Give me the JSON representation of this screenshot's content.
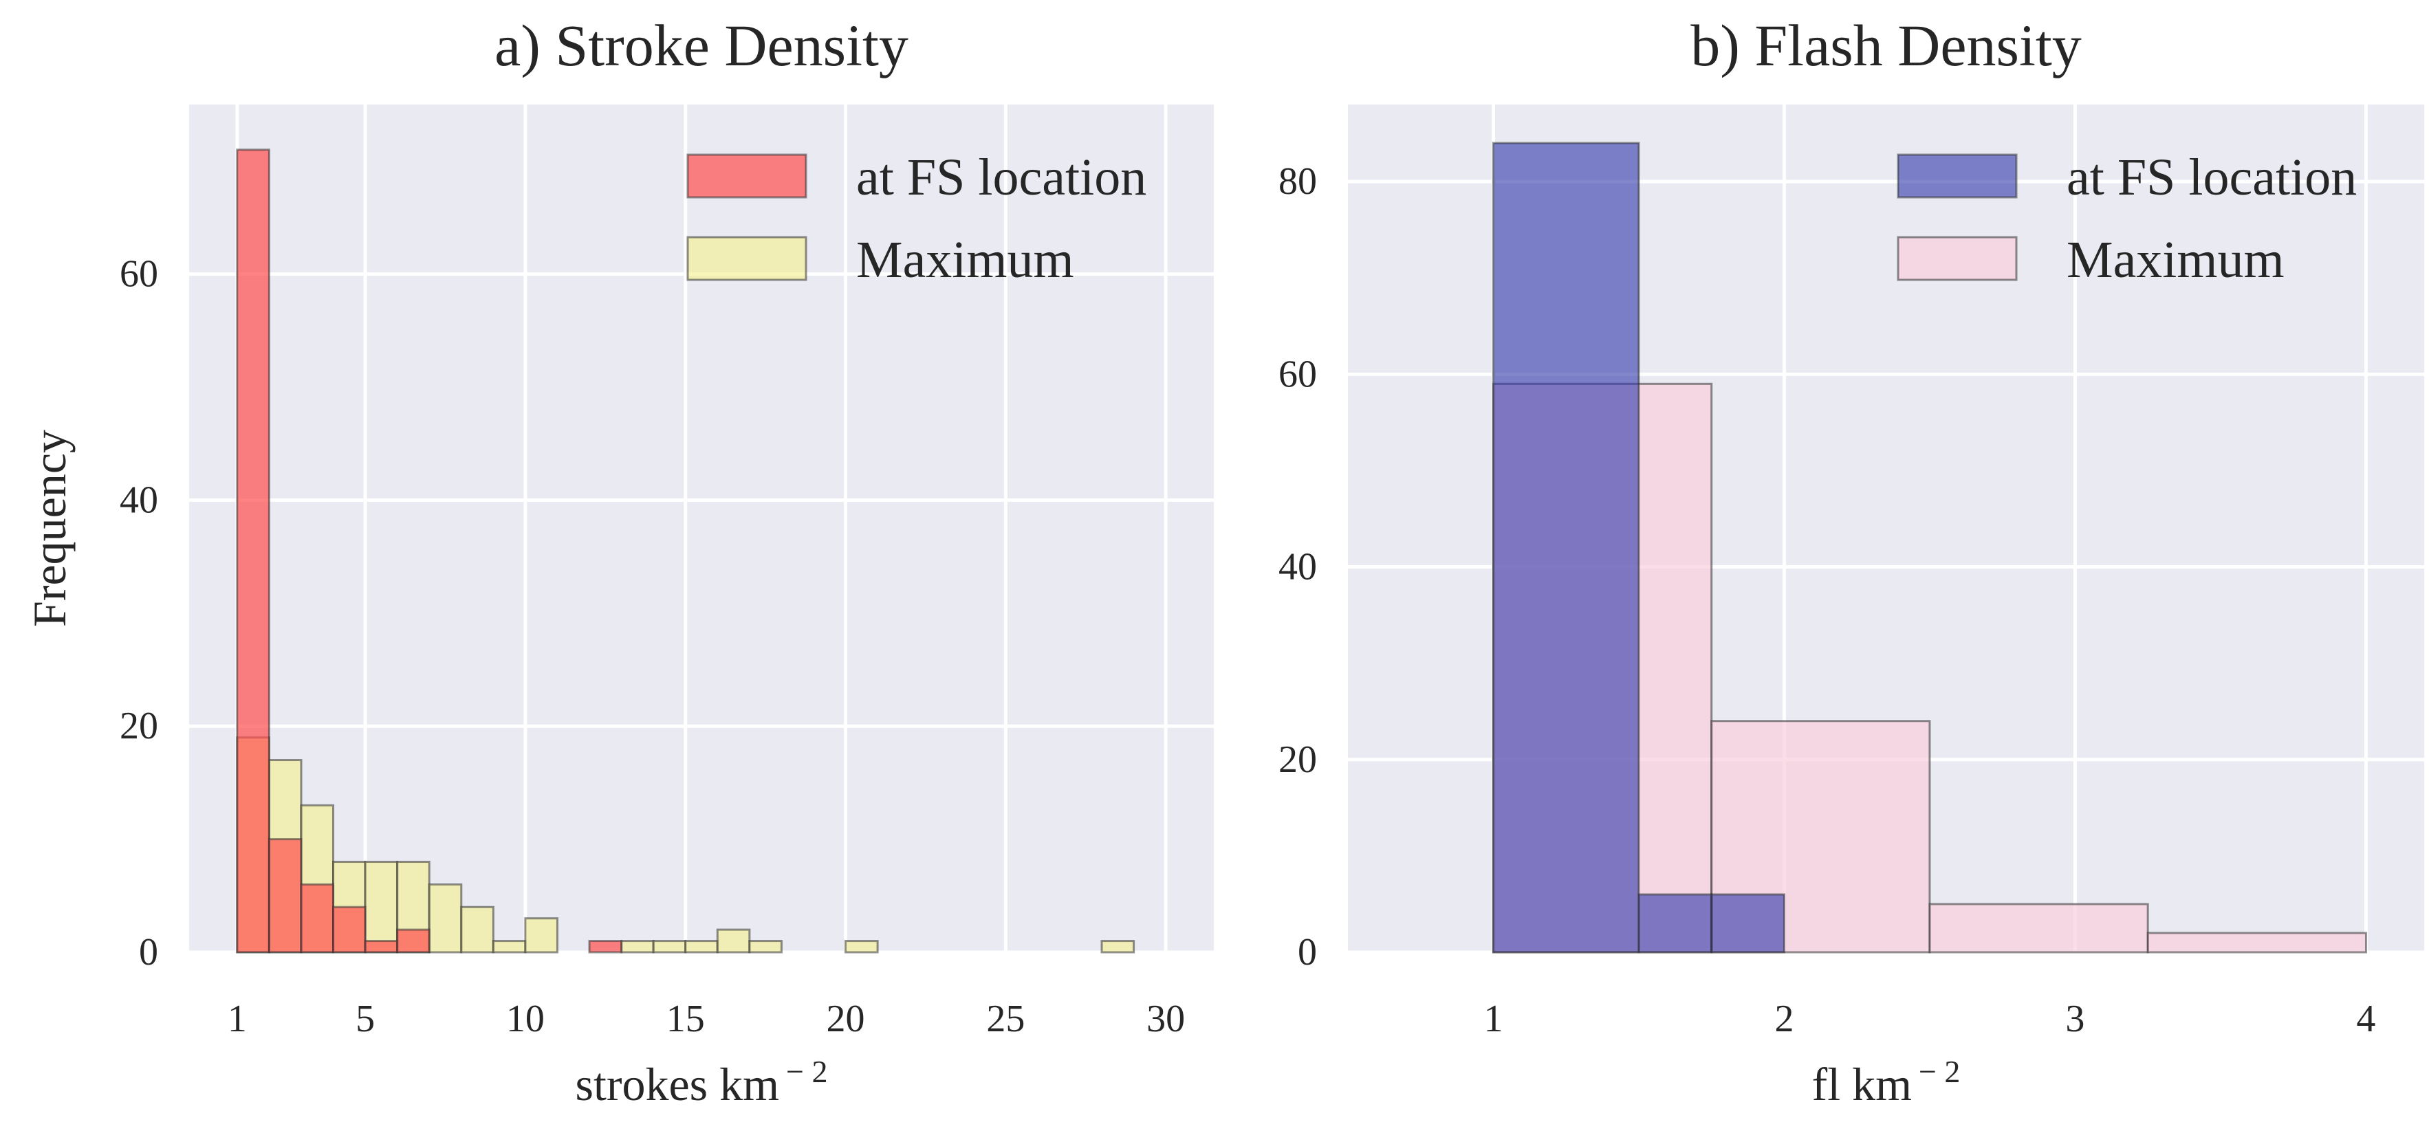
{
  "chart_data": [
    {
      "type": "histogram",
      "title": "a) Stroke Density",
      "xlabel": "strokes km",
      "xlabel_sup": "− 2",
      "ylabel": "Frequency",
      "xlim": [
        -0.5,
        31.5
      ],
      "ylim": [
        0,
        75
      ],
      "xticks": [
        1,
        5,
        10,
        15,
        20,
        25,
        30
      ],
      "yticks": [
        0,
        20,
        40,
        60
      ],
      "grid": true,
      "legend_position": "top-right",
      "series": [
        {
          "name": "Maximum",
          "color": "#f5f08a",
          "opacity": 0.6,
          "bin_width": 1,
          "bins": [
            [
              1,
              19
            ],
            [
              2,
              17
            ],
            [
              3,
              13
            ],
            [
              4,
              8
            ],
            [
              5,
              8
            ],
            [
              6,
              8
            ],
            [
              7,
              6
            ],
            [
              8,
              4
            ],
            [
              9,
              1
            ],
            [
              10,
              3
            ],
            [
              11,
              0
            ],
            [
              12,
              0
            ],
            [
              13,
              1
            ],
            [
              14,
              1
            ],
            [
              15,
              1
            ],
            [
              16,
              2
            ],
            [
              17,
              1
            ],
            [
              18,
              0
            ],
            [
              19,
              0
            ],
            [
              20,
              1
            ],
            [
              21,
              0
            ],
            [
              22,
              0
            ],
            [
              23,
              0
            ],
            [
              24,
              0
            ],
            [
              25,
              0
            ],
            [
              26,
              0
            ],
            [
              27,
              0
            ],
            [
              28,
              1
            ]
          ]
        },
        {
          "name": "at FS location",
          "color": "#ff4d4d",
          "opacity": 0.7,
          "bin_width": 1,
          "bins": [
            [
              1,
              71
            ],
            [
              2,
              10
            ],
            [
              3,
              6
            ],
            [
              4,
              4
            ],
            [
              5,
              1
            ],
            [
              6,
              2
            ],
            [
              12,
              1
            ]
          ]
        }
      ]
    },
    {
      "type": "histogram",
      "title": "b) Flash Density",
      "xlabel": "fl km",
      "xlabel_sup": "− 2",
      "ylabel": "",
      "xlim": [
        0.5,
        4.2
      ],
      "ylim": [
        0,
        88
      ],
      "xticks": [
        1,
        2,
        3,
        4
      ],
      "yticks": [
        0,
        20,
        40,
        60,
        80
      ],
      "grid": true,
      "legend_position": "top-right",
      "series": [
        {
          "name": "Maximum",
          "color": "#f8cfdd",
          "opacity": 0.7,
          "bins": [
            [
              1,
              1.75,
              59
            ],
            [
              1.75,
              2.5,
              24
            ],
            [
              2.5,
              3.25,
              5
            ],
            [
              3.25,
              4,
              2
            ]
          ]
        },
        {
          "name": "at FS location",
          "color": "#2e35a8",
          "opacity": 0.6,
          "bins": [
            [
              1,
              1.5,
              84
            ],
            [
              1.5,
              1.75,
              6
            ],
            [
              1.75,
              2,
              6
            ]
          ]
        }
      ]
    }
  ]
}
